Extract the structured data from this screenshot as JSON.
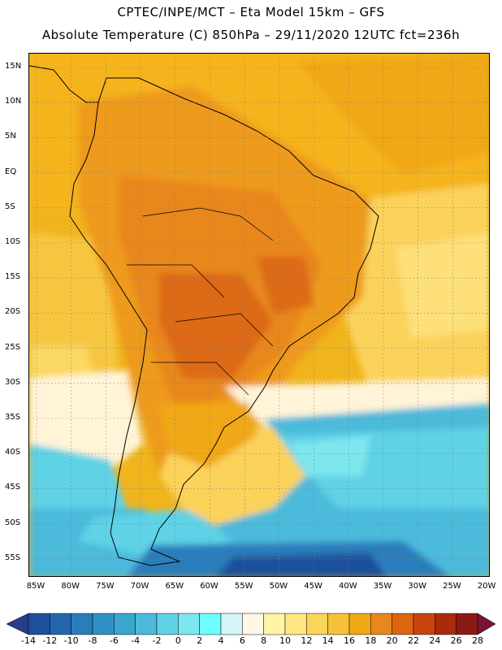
{
  "title_line1": "CPTEC/INPE/MCT –  Eta Model 15km – GFS",
  "title_line2": "Absolute Temperature (C) 850hPa – 29/11/2020 12UTC fct=236h",
  "lat_labels": [
    "15N",
    "10N",
    "5N",
    "EQ",
    "5S",
    "10S",
    "15S",
    "20S",
    "25S",
    "30S",
    "35S",
    "40S",
    "45S",
    "50S",
    "55S"
  ],
  "lon_labels": [
    "85W",
    "80W",
    "75W",
    "70W",
    "65W",
    "60W",
    "55W",
    "50W",
    "45W",
    "40W",
    "35W",
    "30W",
    "25W",
    "20W"
  ],
  "colorbar": {
    "labels": [
      "-14",
      "-12",
      "-10",
      "-8",
      "-6",
      "-4",
      "-2",
      "0",
      "2",
      "4",
      "6",
      "8",
      "10",
      "12",
      "14",
      "16",
      "18",
      "20",
      "22",
      "24",
      "26",
      "28"
    ],
    "colors": [
      "#283c8c",
      "#1e4f9c",
      "#2466ad",
      "#2a7dbb",
      "#2f92c6",
      "#3aa7cf",
      "#4cbadb",
      "#5fd2e6",
      "#7ee6ee",
      "#6effff",
      "#d6f5fa",
      "#fff8e4",
      "#fff4a8",
      "#ffe680",
      "#fbd45a",
      "#f5c23a",
      "#f0a814",
      "#e6881e",
      "#de6410",
      "#c8440c",
      "#aa2a0c",
      "#8c1a14",
      "#7a1430"
    ]
  }
}
